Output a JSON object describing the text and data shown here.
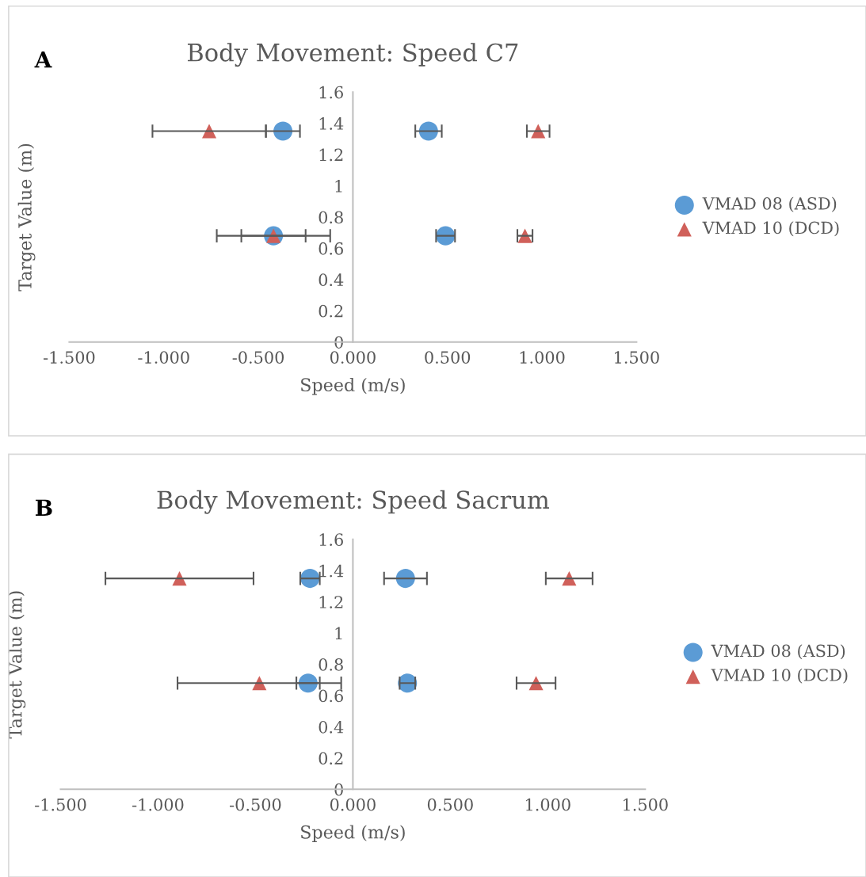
{
  "chart_data": [
    {
      "type": "scatter",
      "title": "Body Movement: Speed C7",
      "xlabel": "Speed (m/s)",
      "ylabel": "Target Value (m)",
      "annotations": [
        "A"
      ],
      "xlim": [
        -1.5,
        1.5
      ],
      "ylim": [
        0,
        1.6
      ],
      "xticks": [
        {
          "value": -1.5,
          "label": "-1.500"
        },
        {
          "value": -1.0,
          "label": "-1.000"
        },
        {
          "value": -0.5,
          "label": "-0.500"
        },
        {
          "value": 0,
          "label": "0.000"
        },
        {
          "value": 0.5,
          "label": "0.500"
        },
        {
          "value": 1.0,
          "label": "1.000"
        },
        {
          "value": 1.5,
          "label": "1.500"
        }
      ],
      "yticks": [
        0,
        0.2,
        0.4,
        0.6,
        0.8,
        1,
        1.2,
        1.4,
        1.6
      ],
      "grid": false,
      "legend": "right",
      "series": [
        {
          "name": "VMAD 08 (ASD)",
          "color": "#5b9bd5",
          "marker": "circle",
          "x": [
            -0.37,
            0.4,
            -0.42,
            0.49
          ],
          "values": [
            1.35,
            1.35,
            0.68,
            0.68
          ],
          "xerrors": [
            0.09,
            0.07,
            0.17,
            0.05
          ]
        },
        {
          "name": "VMAD 10 (DCD)",
          "color": "#d0605a",
          "marker": "triangle",
          "x": [
            -0.76,
            0.98,
            -0.42,
            0.91
          ],
          "values": [
            1.35,
            1.35,
            0.68,
            0.68
          ],
          "xerrors": [
            0.3,
            0.06,
            0.3,
            0.04
          ]
        }
      ]
    },
    {
      "type": "scatter",
      "title": "Body Movement: Speed Sacrum",
      "xlabel": "Speed (m/s)",
      "ylabel": "Target Value (m)",
      "annotations": [
        "B"
      ],
      "xlim": [
        -1.5,
        1.5
      ],
      "ylim": [
        0,
        1.6
      ],
      "xticks": [
        {
          "value": -1.5,
          "label": "-1.500"
        },
        {
          "value": -1.0,
          "label": "-1.000"
        },
        {
          "value": -0.5,
          "label": "-0.500"
        },
        {
          "value": 0,
          "label": "0.000"
        },
        {
          "value": 0.5,
          "label": "0.500"
        },
        {
          "value": 1.0,
          "label": "1.000"
        },
        {
          "value": 1.5,
          "label": "1.500"
        }
      ],
      "yticks": [
        0,
        0.2,
        0.4,
        0.6,
        0.8,
        1,
        1.2,
        1.4,
        1.6
      ],
      "grid": false,
      "legend": "right",
      "series": [
        {
          "name": "VMAD 08 (ASD)",
          "color": "#5b9bd5",
          "marker": "circle",
          "x": [
            -0.22,
            0.27,
            -0.23,
            0.28
          ],
          "values": [
            1.35,
            1.35,
            0.68,
            0.68
          ],
          "xerrors": [
            0.05,
            0.11,
            0.06,
            0.04
          ]
        },
        {
          "name": "VMAD 10 (DCD)",
          "color": "#d0605a",
          "marker": "triangle",
          "x": [
            -0.89,
            1.11,
            -0.48,
            0.94
          ],
          "values": [
            1.35,
            1.35,
            0.68,
            0.68
          ],
          "xerrors": [
            0.38,
            0.12,
            0.42,
            0.1
          ]
        }
      ]
    }
  ]
}
